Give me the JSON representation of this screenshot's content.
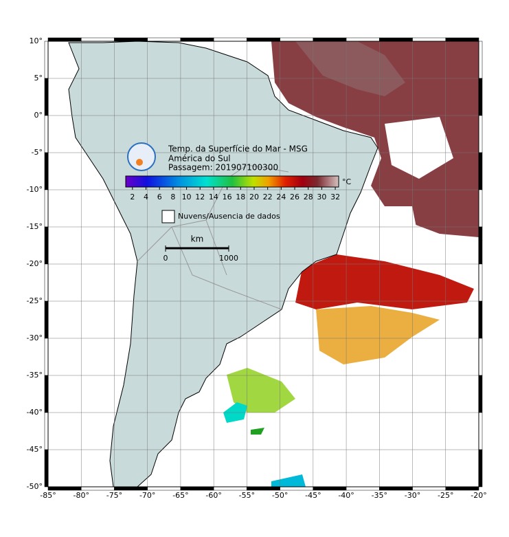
{
  "header": {
    "title": "Temp. da Superfície do Mar - MSG",
    "region": "América do Sul",
    "pass": "Passagem: 201907100300"
  },
  "colorbar": {
    "unit": "°C",
    "lim": [
      1,
      32.5
    ],
    "ticks": [
      2,
      4,
      6,
      8,
      10,
      12,
      14,
      16,
      18,
      20,
      22,
      24,
      26,
      28,
      30,
      32
    ]
  },
  "legend": {
    "no_data": "Nuvens/Ausencia de dados"
  },
  "scale_bar": {
    "unit": "km",
    "ticks": [
      0,
      1000
    ]
  },
  "axes": {
    "lonlim": [
      -85,
      -20
    ],
    "latlim": [
      -50,
      10
    ],
    "lon_ticks": [
      {
        "value": -85,
        "label": "-85°"
      },
      {
        "value": -80,
        "label": "-80°"
      },
      {
        "value": -75,
        "label": "-75°"
      },
      {
        "value": -70,
        "label": "-70°"
      },
      {
        "value": -65,
        "label": "-65°"
      },
      {
        "value": -60,
        "label": "-60°"
      },
      {
        "value": -55,
        "label": "-55°"
      },
      {
        "value": -50,
        "label": "-50°"
      },
      {
        "value": -45,
        "label": "-45°"
      },
      {
        "value": -40,
        "label": "-40°"
      },
      {
        "value": -35,
        "label": "-35°"
      },
      {
        "value": -30,
        "label": "-30°"
      },
      {
        "value": -25,
        "label": "-25°"
      },
      {
        "value": -20,
        "label": "-20°"
      }
    ],
    "lat_ticks": [
      {
        "value": 10,
        "label": "10°"
      },
      {
        "value": 5,
        "label": "5°"
      },
      {
        "value": 0,
        "label": "0°"
      },
      {
        "value": -5,
        "label": "-5°"
      },
      {
        "value": -10,
        "label": "-10°"
      },
      {
        "value": -15,
        "label": "-15°"
      },
      {
        "value": -20,
        "label": "-20°"
      },
      {
        "value": -25,
        "label": "-25°"
      },
      {
        "value": -30,
        "label": "-30°"
      },
      {
        "value": -35,
        "label": "-35°"
      },
      {
        "value": -40,
        "label": "-40°"
      },
      {
        "value": -45,
        "label": "-45°"
      },
      {
        "value": -50,
        "label": "-50°"
      }
    ]
  }
}
